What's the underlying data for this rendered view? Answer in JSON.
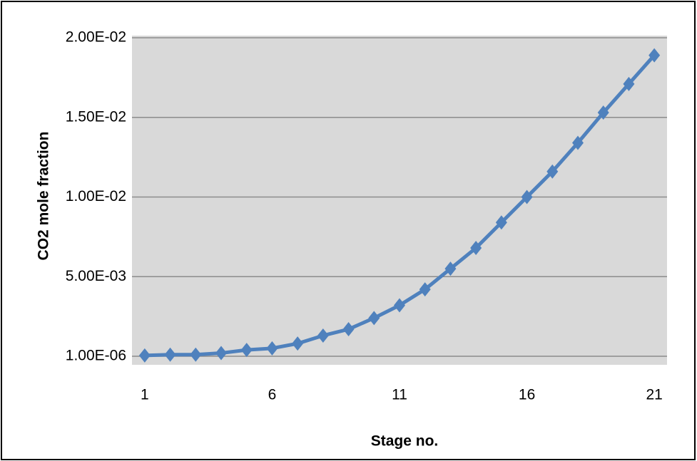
{
  "chart_data": {
    "type": "line",
    "x_label": "Stage no.",
    "y_label": "CO2 mole fraction",
    "x": [
      1,
      2,
      3,
      4,
      5,
      6,
      7,
      8,
      9,
      10,
      11,
      12,
      13,
      14,
      15,
      16,
      17,
      18,
      19,
      20,
      21
    ],
    "series": [
      {
        "color": "#4f81bd",
        "values": [
          5e-05,
          0.0001,
          0.0001,
          0.0002,
          0.0004,
          0.0005,
          0.0008,
          0.0013,
          0.0017,
          0.0024,
          0.0032,
          0.0042,
          0.0055,
          0.0068,
          0.0084,
          0.01,
          0.0116,
          0.0134,
          0.0153,
          0.0171,
          0.0189
        ]
      }
    ],
    "xlim": [
      0.5,
      21.5
    ],
    "xticks": [
      1,
      6,
      11,
      16,
      21
    ],
    "ylim": [
      1e-06,
      0.02
    ],
    "yticks": [
      {
        "value": 1e-06,
        "label": "1.00E-06"
      },
      {
        "value": 0.005,
        "label": "5.00E-03"
      },
      {
        "value": 0.01,
        "label": "1.00E-02"
      },
      {
        "value": 0.015,
        "label": "1.50E-02"
      },
      {
        "value": 0.02,
        "label": "2.00E-02"
      }
    ],
    "grid": true
  }
}
